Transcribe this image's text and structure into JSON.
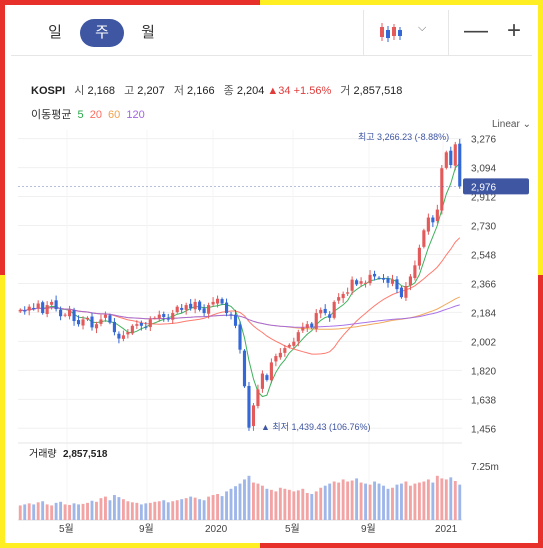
{
  "period_tabs": [
    {
      "label": "일"
    },
    {
      "label": "주",
      "active": true
    },
    {
      "label": "월"
    }
  ],
  "toolbar": {
    "zoom_out_label": "—",
    "zoom_in_label": "+",
    "chart_type_icon": "candlestick-icon",
    "dropdown_icon": "chevron-down-icon"
  },
  "quote": {
    "name": "KOSPI",
    "open_label": "시",
    "open": "2,168",
    "high_label": "고",
    "high": "2,207",
    "low_label": "저",
    "low": "2,166",
    "close_label": "종",
    "close": "2,204",
    "change": "▲34",
    "change_pct": "+1.56%",
    "volume_label": "거",
    "volume": "2,857,518"
  },
  "moving_average": {
    "label": "이동평균",
    "periods": [
      {
        "label": "5",
        "color": "#2aa84a"
      },
      {
        "label": "20",
        "color": "#ff6b5e"
      },
      {
        "label": "60",
        "color": "#f0a14a"
      },
      {
        "label": "120",
        "color": "#a065e6"
      }
    ]
  },
  "scale_label": "Linear",
  "colors": {
    "up": "#e35a5a",
    "down": "#3468d6",
    "accent": "#3f56a3"
  },
  "chart_data": {
    "type": "candlestick",
    "y_ticks": [
      "3,276",
      "3,094",
      "2,912",
      "2,730",
      "2,548",
      "2,366",
      "2,184",
      "2,002",
      "1,820",
      "1,638",
      "1,456"
    ],
    "ylim": [
      1370,
      3330
    ],
    "x_ticks": [
      "5월",
      "9월",
      "2020",
      "5월",
      "9월",
      "2021"
    ],
    "current_price": "2,976",
    "max_label": "최고 3,266.23 (-8.88%)",
    "min_label": "▲ 최저 1,439.43 (106.76%)",
    "closes": [
      2200,
      2190,
      2220,
      2210,
      2240,
      2180,
      2230,
      2250,
      2205,
      2160,
      2170,
      2200,
      2130,
      2110,
      2140,
      2150,
      2090,
      2110,
      2140,
      2170,
      2120,
      2060,
      2020,
      2040,
      2060,
      2100,
      2110,
      2100,
      2090,
      2140,
      2150,
      2170,
      2155,
      2140,
      2180,
      2220,
      2200,
      2230,
      2210,
      2250,
      2200,
      2180,
      2230,
      2250,
      2270,
      2240,
      2180,
      2170,
      2100,
      1950,
      1720,
      1460,
      1600,
      1700,
      1800,
      1760,
      1870,
      1910,
      1930,
      1960,
      1980,
      2000,
      2060,
      2090,
      2110,
      2090,
      2180,
      2200,
      2180,
      2150,
      2250,
      2280,
      2300,
      2310,
      2390,
      2360,
      2380,
      2370,
      2420,
      2410,
      2400,
      2390,
      2370,
      2390,
      2330,
      2280,
      2350,
      2410,
      2480,
      2590,
      2700,
      2780,
      2750,
      2830,
      3090,
      3190,
      3110,
      3240,
      2976
    ],
    "volume": {
      "label": "거래량",
      "value": "2,857,518",
      "axis_label": "7.25m",
      "bars": [
        0.28,
        0.3,
        0.32,
        0.3,
        0.34,
        0.36,
        0.3,
        0.28,
        0.33,
        0.35,
        0.3,
        0.29,
        0.32,
        0.3,
        0.31,
        0.33,
        0.37,
        0.35,
        0.42,
        0.45,
        0.38,
        0.48,
        0.44,
        0.4,
        0.36,
        0.34,
        0.33,
        0.3,
        0.32,
        0.33,
        0.35,
        0.36,
        0.38,
        0.34,
        0.36,
        0.38,
        0.4,
        0.42,
        0.45,
        0.43,
        0.4,
        0.38,
        0.45,
        0.48,
        0.5,
        0.46,
        0.55,
        0.6,
        0.65,
        0.7,
        0.78,
        0.85,
        0.72,
        0.7,
        0.66,
        0.6,
        0.58,
        0.55,
        0.62,
        0.6,
        0.58,
        0.55,
        0.57,
        0.6,
        0.52,
        0.5,
        0.55,
        0.62,
        0.66,
        0.7,
        0.74,
        0.72,
        0.78,
        0.74,
        0.76,
        0.8,
        0.72,
        0.7,
        0.68,
        0.74,
        0.7,
        0.66,
        0.6,
        0.62,
        0.68,
        0.7,
        0.74,
        0.66,
        0.7,
        0.72,
        0.74,
        0.78,
        0.72,
        0.85,
        0.8,
        0.78,
        0.82,
        0.75,
        0.68
      ]
    }
  }
}
